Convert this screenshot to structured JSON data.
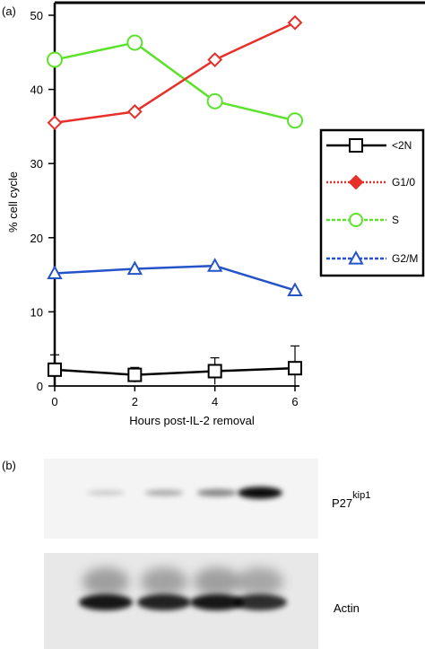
{
  "panel_a_label": "(a)",
  "panel_b_label": "(b)",
  "chart_data": {
    "type": "line",
    "title": "",
    "xlabel": "Hours post-IL-2 removal",
    "ylabel": "% cell cycle",
    "x": [
      0,
      2,
      4,
      6
    ],
    "x_ticks": [
      "0",
      "2",
      "4",
      "6"
    ],
    "y_ticks": [
      "0",
      "10",
      "20",
      "30",
      "40",
      "50"
    ],
    "xlim": [
      0,
      6
    ],
    "ylim": [
      0,
      53
    ],
    "grid": false,
    "legend_position": "right",
    "series": [
      {
        "name": "<2N",
        "values": [
          2.2,
          1.5,
          2.0,
          2.4
        ],
        "error": [
          2.0,
          1.0,
          1.8,
          3.0
        ],
        "color": "#000000",
        "marker": "square",
        "line_style": "solid"
      },
      {
        "name": "G1/0",
        "values": [
          35.5,
          37.0,
          44.0,
          49.0
        ],
        "error": null,
        "color": "#e8302a",
        "marker": "diamond",
        "line_style": "dotted"
      },
      {
        "name": "S",
        "values": [
          44.0,
          46.3,
          38.4,
          35.8
        ],
        "error": null,
        "color": "#5ce22c",
        "marker": "circle",
        "line_style": "dashed"
      },
      {
        "name": "G2/M",
        "values": [
          15.2,
          15.8,
          16.2,
          12.9
        ],
        "error": null,
        "color": "#2553c8",
        "marker": "triangle",
        "line_style": "dashed"
      }
    ]
  },
  "blot": {
    "lanes": 4,
    "rows": [
      {
        "label": "P27",
        "label_sup": "kip1",
        "intensities": [
          0.18,
          0.3,
          0.45,
          0.95
        ]
      },
      {
        "label": "Actin",
        "intensities": [
          0.9,
          0.85,
          0.9,
          0.8
        ]
      }
    ]
  }
}
